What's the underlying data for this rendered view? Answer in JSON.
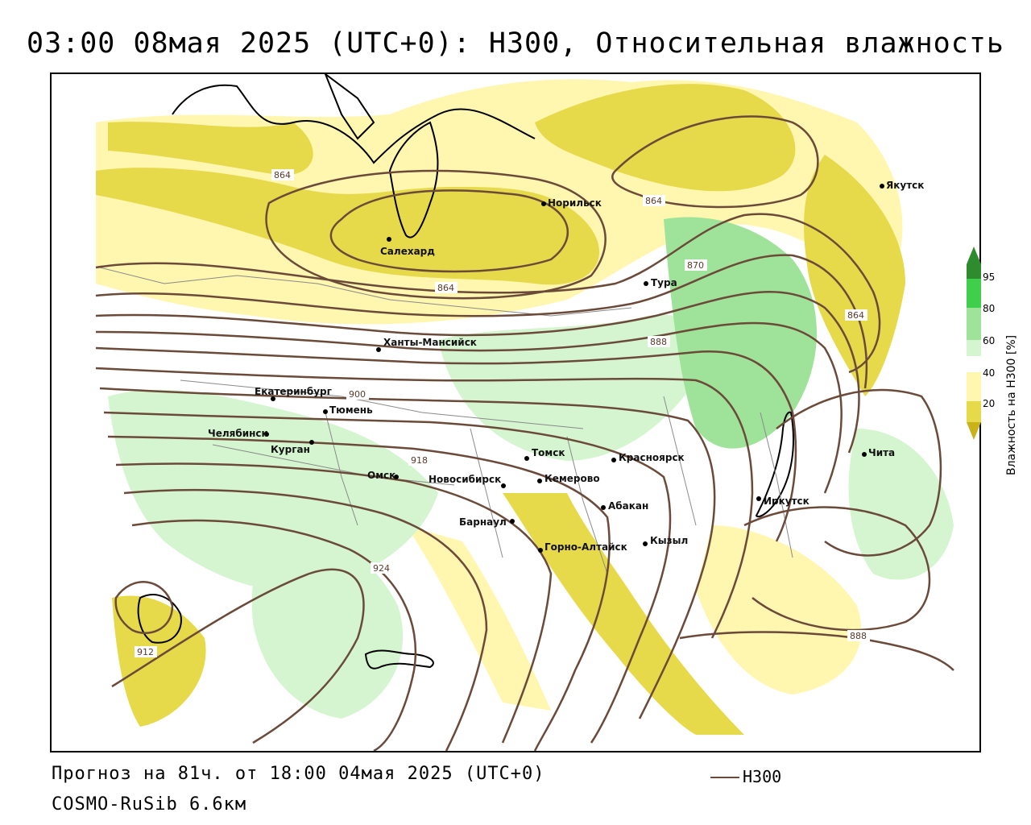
{
  "title": "03:00 08мая 2025 (UTC+0): H300, Относительная влажность",
  "footer": {
    "forecast": "Прогноз на 81ч. от 18:00 04мая 2025 (UTC+0)",
    "model": "COSMO-RuSib 6.6км",
    "legend_h300": "H300"
  },
  "colorbar": {
    "title": "Влажность на H300 [%]",
    "ticks": [
      "95",
      "80",
      "60",
      "40",
      "20"
    ],
    "colors": [
      "#2e8b2e",
      "#3fcf4a",
      "#9fe39a",
      "#d4f5cf",
      "#ffffff",
      "#fff6b0",
      "#e6d94a",
      "#c9b21a"
    ]
  },
  "cities": [
    {
      "name": "Якутск"
    },
    {
      "name": "Норильск"
    },
    {
      "name": "Салехард"
    },
    {
      "name": "Тура"
    },
    {
      "name": "Ханты-Мансийск"
    },
    {
      "name": "Екатеринбург"
    },
    {
      "name": "Тюмень"
    },
    {
      "name": "Челябинск"
    },
    {
      "name": "Курган"
    },
    {
      "name": "Омск"
    },
    {
      "name": "Новосибирск"
    },
    {
      "name": "Томск"
    },
    {
      "name": "Кемерово"
    },
    {
      "name": "Красноярск"
    },
    {
      "name": "Барнаул"
    },
    {
      "name": "Абакан"
    },
    {
      "name": "Горно-Алтайск"
    },
    {
      "name": "Кызыл"
    },
    {
      "name": "Иркутск"
    },
    {
      "name": "Чита"
    }
  ],
  "contour_labels": [
    "864",
    "864",
    "864",
    "870",
    "864",
    "888",
    "900",
    "918",
    "924",
    "912",
    "888"
  ]
}
